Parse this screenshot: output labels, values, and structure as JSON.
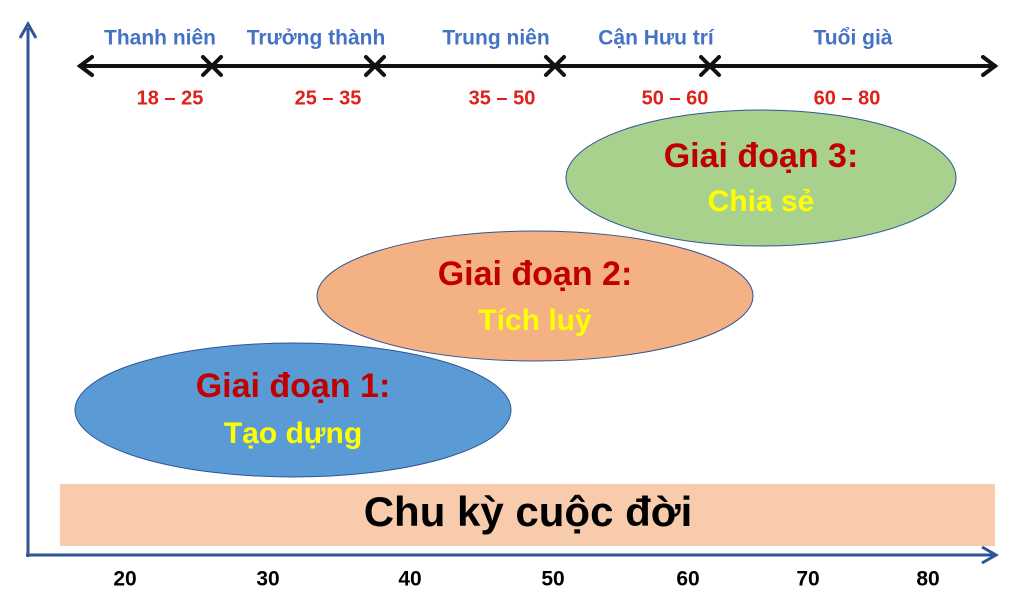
{
  "stages": [
    {
      "name": "Thanh niên",
      "range": "18 – 25"
    },
    {
      "name": "Trưởng thành",
      "range": "25 – 35"
    },
    {
      "name": "Trung niên",
      "range": "35 – 50"
    },
    {
      "name": "Cận Hưu trí",
      "range": "50 – 60"
    },
    {
      "name": "Tuổi già",
      "range": "60 – 80"
    }
  ],
  "phases": [
    {
      "title": "Giai đoạn 1:",
      "subtitle": "Tạo dựng"
    },
    {
      "title": "Giai đoạn 2:",
      "subtitle": "Tích luỹ"
    },
    {
      "title": "Giai đoạn 3:",
      "subtitle": "Chia sẻ"
    }
  ],
  "banner": "Chu kỳ cuộc đời",
  "axis_labels": [
    20,
    30,
    40,
    50,
    60,
    70,
    80
  ]
}
